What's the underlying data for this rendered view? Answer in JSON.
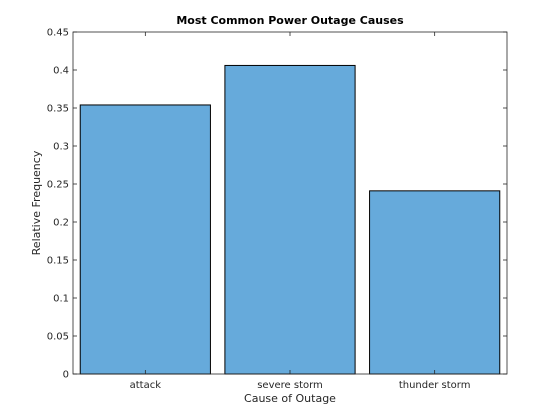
{
  "chart_data": {
    "type": "bar",
    "title": "Most Common Power Outage Causes",
    "xlabel": "Cause of Outage",
    "ylabel": "Relative Frequency",
    "categories": [
      "attack",
      "severe storm",
      "thunder storm"
    ],
    "values": [
      0.354,
      0.406,
      0.241
    ],
    "ylim": [
      0,
      0.45
    ],
    "yticks": [
      "0",
      "0.05",
      "0.1",
      "0.15",
      "0.2",
      "0.25",
      "0.3",
      "0.35",
      "0.4",
      "0.45"
    ],
    "grid": false,
    "bar_color": "#66AADB",
    "box": true
  }
}
